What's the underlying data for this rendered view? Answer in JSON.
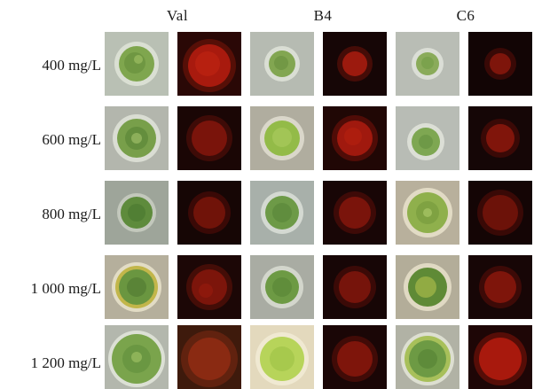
{
  "columns": [
    "Val",
    "B4",
    "C6"
  ],
  "rows": [
    "400 mg/L",
    "600 mg/L",
    "800 mg/L",
    "1 000 mg/L",
    "1 200 mg/L"
  ],
  "panel_types": [
    "bright-field micrograph",
    "red fluorescence micrograph"
  ],
  "colors": {
    "bright_background": "#b8bcaf",
    "cell_green": "#6e9a45",
    "cell_green_light": "#a8c85a",
    "fluorescence_background": "#150808",
    "fluorescence_red": "#a01a10"
  }
}
